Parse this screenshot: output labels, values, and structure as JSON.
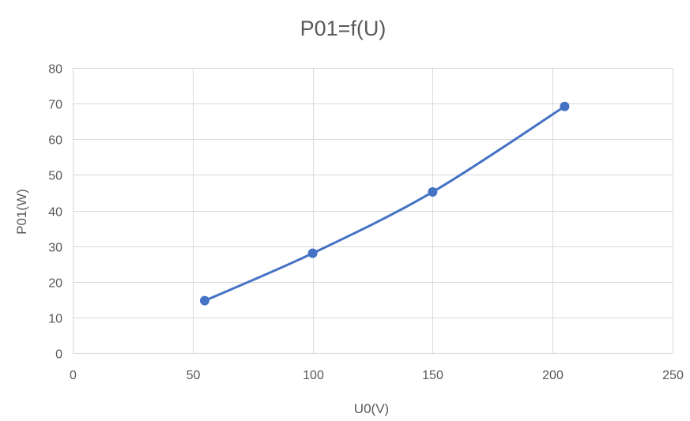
{
  "chart_data": {
    "type": "scatter",
    "title": "P01=f(U)",
    "xlabel": "U0(V)",
    "ylabel": "P01(W)",
    "xlim": [
      0,
      250
    ],
    "ylim": [
      0,
      80
    ],
    "x_ticks": [
      "0",
      "50",
      "100",
      "150",
      "200",
      "250"
    ],
    "y_ticks": [
      "0",
      "10",
      "20",
      "30",
      "40",
      "50",
      "60",
      "70",
      "80"
    ],
    "grid": true,
    "legend": "none",
    "smooth_line": true,
    "series": [
      {
        "x": [
          55,
          100,
          150,
          205
        ],
        "y": [
          14.7,
          28,
          45.2,
          69.2
        ],
        "color": "#4472c4"
      }
    ]
  }
}
